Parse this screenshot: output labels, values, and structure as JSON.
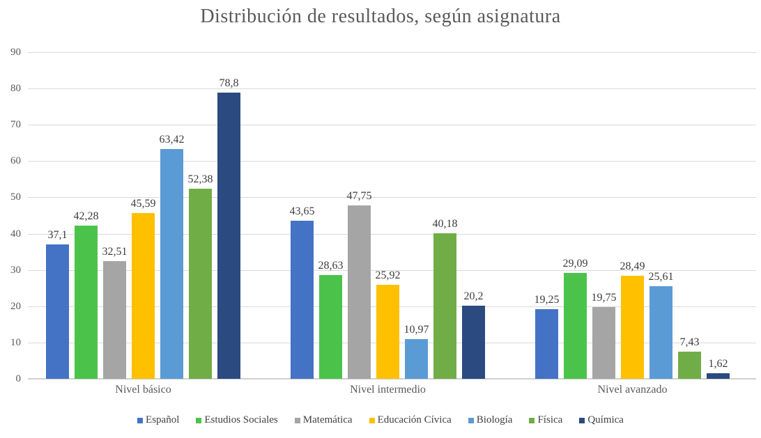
{
  "title": "Distribución de resultados, según asignatura",
  "colors": {
    "title_text": "#595959",
    "axis_text": "#595959",
    "data_label_text": "#3c3c3c",
    "legend_text": "#404040",
    "gridline": "#d9d9d9",
    "axis_line": "#d0d0d0",
    "background": "#ffffff"
  },
  "chart_data": {
    "type": "bar",
    "title": "Distribución de resultados, según asignatura",
    "categories": [
      "Nivel básico",
      "Nivel intermedio",
      "Nivel avanzado"
    ],
    "series": [
      {
        "name": "Español",
        "color": "#4472C4",
        "values": [
          37.1,
          43.65,
          19.25
        ],
        "labels": [
          "37,1",
          "43,65",
          "19,25"
        ]
      },
      {
        "name": "Estudios Sociales",
        "color": "#4BC34B",
        "values": [
          42.28,
          28.63,
          29.09
        ],
        "labels": [
          "42,28",
          "28,63",
          "29,09"
        ]
      },
      {
        "name": "Matemática",
        "color": "#A5A5A5",
        "values": [
          32.51,
          47.75,
          19.75
        ],
        "labels": [
          "32,51",
          "47,75",
          "19,75"
        ]
      },
      {
        "name": "Educación Cívica",
        "color": "#FFC000",
        "values": [
          45.59,
          25.92,
          28.49
        ],
        "labels": [
          "45,59",
          "25,92",
          "28,49"
        ]
      },
      {
        "name": "Biología",
        "color": "#5B9BD5",
        "values": [
          63.42,
          10.97,
          25.61
        ],
        "labels": [
          "63,42",
          "10,97",
          "25,61"
        ]
      },
      {
        "name": "Física",
        "color": "#70AD47",
        "values": [
          52.38,
          40.18,
          7.43
        ],
        "labels": [
          "52,38",
          "40,18",
          "7,43"
        ]
      },
      {
        "name": "Química",
        "color": "#2A4A80",
        "values": [
          78.8,
          20.2,
          1.62
        ],
        "labels": [
          "78,8",
          "20,2",
          "1,62"
        ]
      }
    ],
    "xlabel": "",
    "ylabel": "",
    "ylim": [
      0,
      90
    ],
    "ytick_step": 10,
    "yticks": [
      "0",
      "10",
      "20",
      "30",
      "40",
      "50",
      "60",
      "70",
      "80",
      "90"
    ],
    "grid": true,
    "legend_position": "bottom"
  }
}
